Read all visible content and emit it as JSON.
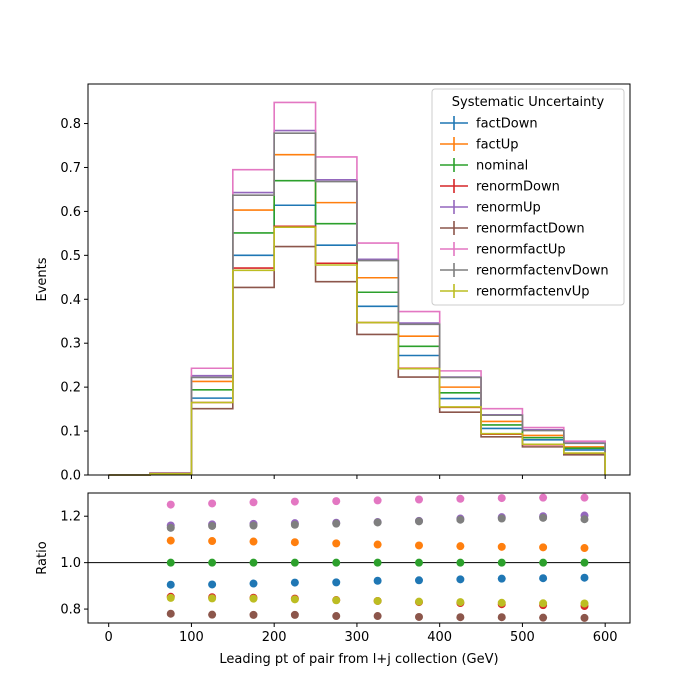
{
  "chart_data": {
    "type": "histogram-with-ratio",
    "xlabel": "Leading pt of pair from l+j collection (GeV)",
    "x_edges": [
      0,
      50,
      100,
      150,
      200,
      250,
      300,
      350,
      400,
      450,
      500,
      550,
      600
    ],
    "xlim": [
      -25,
      630
    ],
    "x_ticks": [
      "0",
      "100",
      "200",
      "300",
      "400",
      "500",
      "600"
    ],
    "top": {
      "ylabel": "Events",
      "ylim": [
        0,
        0.89
      ],
      "y_ticks": [
        "0.0",
        "0.1",
        "0.2",
        "0.3",
        "0.4",
        "0.5",
        "0.6",
        "0.7",
        "0.8"
      ],
      "legend": {
        "title": "Systematic Uncertainty",
        "placement": "top-right"
      },
      "series": [
        {
          "name": "factDown",
          "color": "#1f77b4",
          "values": [
            0.0,
            0.003,
            0.175,
            0.5,
            0.614,
            0.523,
            0.384,
            0.272,
            0.174,
            0.106,
            0.08,
            0.057
          ]
        },
        {
          "name": "factUp",
          "color": "#ff7f0e",
          "values": [
            0.0,
            0.004,
            0.213,
            0.603,
            0.729,
            0.62,
            0.449,
            0.316,
            0.2,
            0.122,
            0.09,
            0.064
          ]
        },
        {
          "name": "nominal",
          "color": "#2ca02c",
          "values": [
            0.0,
            0.004,
            0.194,
            0.551,
            0.67,
            0.572,
            0.416,
            0.293,
            0.187,
            0.114,
            0.085,
            0.061
          ]
        },
        {
          "name": "renormDown",
          "color": "#d62728",
          "values": [
            0.0,
            0.003,
            0.165,
            0.471,
            0.566,
            0.482,
            0.347,
            0.243,
            0.154,
            0.093,
            0.069,
            0.049
          ]
        },
        {
          "name": "renormUp",
          "color": "#9467bd",
          "values": [
            0.0,
            0.004,
            0.226,
            0.643,
            0.784,
            0.672,
            0.491,
            0.346,
            0.223,
            0.137,
            0.103,
            0.073
          ]
        },
        {
          "name": "renormfactDown",
          "color": "#8c564b",
          "values": [
            0.0,
            0.003,
            0.151,
            0.427,
            0.52,
            0.44,
            0.32,
            0.223,
            0.143,
            0.087,
            0.064,
            0.046
          ]
        },
        {
          "name": "renormfactUp",
          "color": "#e377c2",
          "values": [
            0.0,
            0.005,
            0.243,
            0.695,
            0.848,
            0.724,
            0.528,
            0.372,
            0.237,
            0.151,
            0.108,
            0.077
          ]
        },
        {
          "name": "renormfactenvDown",
          "color": "#7f7f7f",
          "values": [
            0.0,
            0.004,
            0.222,
            0.637,
            0.778,
            0.668,
            0.488,
            0.343,
            0.222,
            0.136,
            0.101,
            0.072
          ]
        },
        {
          "name": "renormfactenvUp",
          "color": "#bcbd22",
          "values": [
            0.0,
            0.003,
            0.165,
            0.466,
            0.564,
            0.478,
            0.347,
            0.242,
            0.155,
            0.094,
            0.07,
            0.05
          ]
        }
      ]
    },
    "bottom": {
      "ylabel": "Ratio",
      "ylim": [
        0.74,
        1.3
      ],
      "y_ticks": [
        "0.8",
        "1.0",
        "1.2"
      ],
      "reference_line": 1.0,
      "x_centers": [
        75,
        125,
        175,
        225,
        275,
        325,
        375,
        425,
        475,
        525,
        575
      ],
      "series": [
        {
          "name": "factDown",
          "color": "#1f77b4",
          "values": [
            0.905,
            0.906,
            0.91,
            0.914,
            0.915,
            0.922,
            0.924,
            0.928,
            0.931,
            0.933,
            0.935
          ]
        },
        {
          "name": "factUp",
          "color": "#ff7f0e",
          "values": [
            1.095,
            1.093,
            1.091,
            1.088,
            1.083,
            1.078,
            1.074,
            1.071,
            1.068,
            1.066,
            1.063
          ]
        },
        {
          "name": "nominal",
          "color": "#2ca02c",
          "values": [
            1.0,
            1.0,
            1.0,
            1.0,
            1.0,
            1.0,
            1.0,
            1.0,
            1.0,
            1.0,
            1.0
          ]
        },
        {
          "name": "renormDown",
          "color": "#d62728",
          "values": [
            0.853,
            0.851,
            0.849,
            0.845,
            0.839,
            0.835,
            0.83,
            0.826,
            0.821,
            0.817,
            0.813
          ]
        },
        {
          "name": "renormUp",
          "color": "#9467bd",
          "values": [
            1.16,
            1.165,
            1.167,
            1.17,
            1.172,
            1.175,
            1.18,
            1.19,
            1.196,
            1.2,
            1.203
          ]
        },
        {
          "name": "renormfactDown",
          "color": "#8c564b",
          "values": [
            0.78,
            0.776,
            0.775,
            0.775,
            0.77,
            0.77,
            0.766,
            0.765,
            0.765,
            0.763,
            0.762
          ]
        },
        {
          "name": "renormfactUp",
          "color": "#e377c2",
          "values": [
            1.25,
            1.255,
            1.26,
            1.263,
            1.265,
            1.268,
            1.272,
            1.275,
            1.278,
            1.28,
            1.28
          ]
        },
        {
          "name": "renormfactenvDown",
          "color": "#7f7f7f",
          "values": [
            1.15,
            1.158,
            1.16,
            1.163,
            1.168,
            1.173,
            1.178,
            1.185,
            1.19,
            1.193,
            1.187
          ]
        },
        {
          "name": "renormfactenvUp",
          "color": "#bcbd22",
          "values": [
            0.848,
            0.846,
            0.845,
            0.842,
            0.838,
            0.835,
            0.832,
            0.83,
            0.827,
            0.825,
            0.824
          ]
        }
      ]
    }
  }
}
